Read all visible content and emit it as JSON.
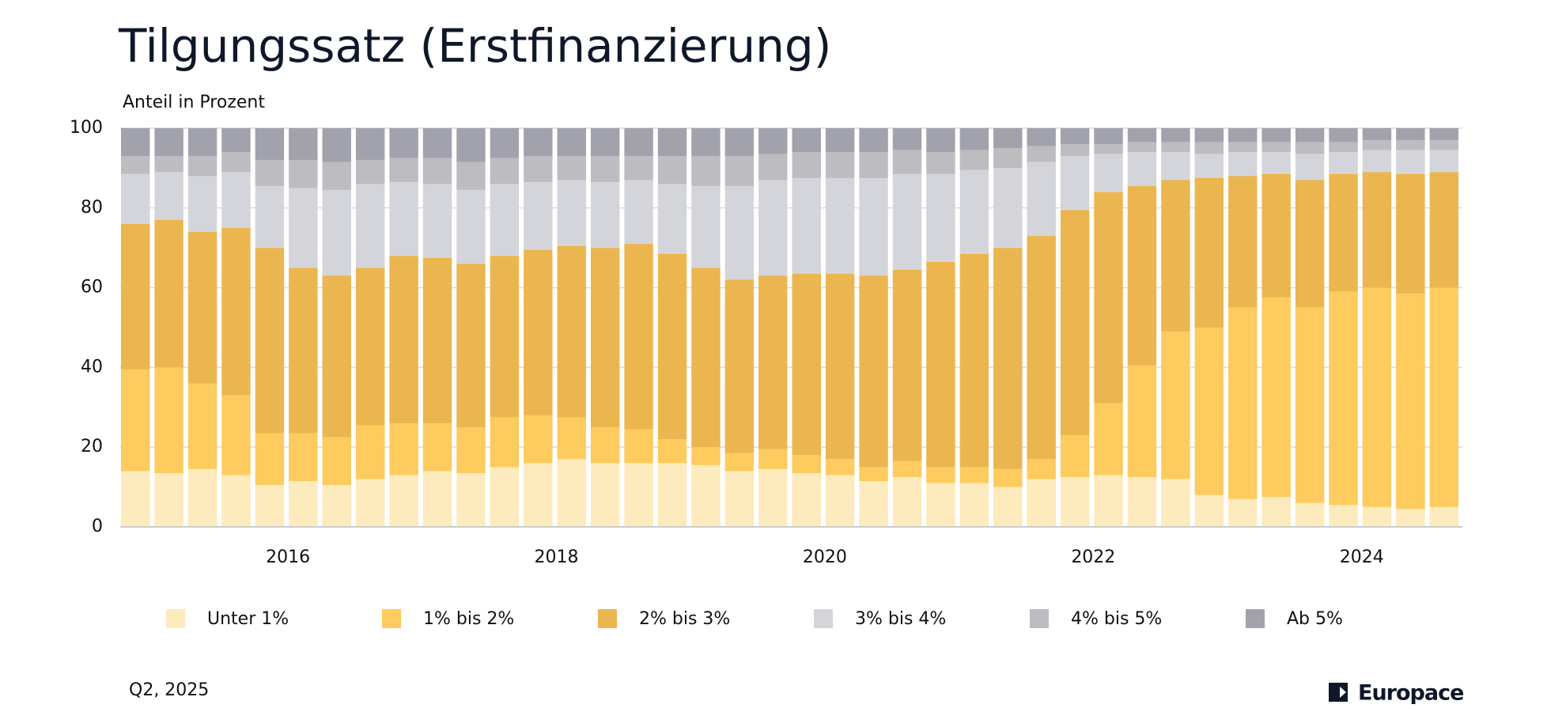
{
  "chart_data": {
    "type": "stacked_bar",
    "title": "Tilgungssatz (Erstfinanzierung)",
    "subtitle": "Anteil in Prozent",
    "footer": "Q2, 2025",
    "brand": "Europace",
    "categories": [
      null,
      null,
      null,
      null,
      null,
      "2016",
      null,
      null,
      null,
      null,
      null,
      null,
      null,
      "2018",
      null,
      null,
      null,
      null,
      null,
      null,
      null,
      "2020",
      null,
      null,
      null,
      null,
      null,
      null,
      null,
      "2022",
      null,
      null,
      null,
      null,
      null,
      null,
      null,
      "2024",
      null,
      null
    ],
    "ylim": [
      0,
      100
    ],
    "yticks": [
      0,
      20,
      40,
      60,
      80,
      100
    ],
    "grid": true,
    "series": [
      {
        "name": "Unter 1%",
        "color": "#fdeabd",
        "values": [
          14,
          13.5,
          14.5,
          13,
          10.5,
          11.5,
          10.5,
          12,
          13,
          14,
          13.5,
          15,
          16,
          17,
          16,
          16,
          16,
          15.5,
          14,
          14.5,
          13.5,
          13,
          11.5,
          12.5,
          11,
          11,
          10,
          12,
          12.5,
          13,
          12.5,
          12,
          8,
          7,
          7.5,
          6,
          5.5,
          5,
          4.5,
          5
        ]
      },
      {
        "name": "1% bis 2%",
        "color": "#fdcb5e",
        "values": [
          25.5,
          26.5,
          21.5,
          20,
          13,
          12,
          12,
          13.5,
          13,
          12,
          11.5,
          12.5,
          12,
          10.5,
          9,
          8.5,
          6,
          4.5,
          4.5,
          5,
          4.5,
          4,
          3.5,
          4,
          4,
          4,
          4.5,
          5,
          10.5,
          18,
          28,
          37,
          42,
          48,
          50,
          49,
          53.5,
          55,
          54,
          55
        ]
      },
      {
        "name": "2% bis 3%",
        "color": "#ebb64f",
        "values": [
          36.5,
          37,
          38,
          42,
          46.5,
          41.5,
          40.5,
          39.5,
          42,
          41.5,
          41,
          40.5,
          41.5,
          43,
          45,
          46.5,
          46.5,
          45,
          43.5,
          43.5,
          45.5,
          46.5,
          48,
          48,
          51.5,
          53.5,
          55.5,
          56,
          56.5,
          53,
          45,
          38,
          37.5,
          33,
          31,
          32,
          29.5,
          29,
          30,
          29
        ]
      },
      {
        "name": "3% bis 4%",
        "color": "#d4d5da",
        "values": [
          12.5,
          12,
          14,
          14,
          15.5,
          20,
          21.5,
          21,
          18.5,
          18.5,
          18.5,
          18,
          17,
          16.5,
          16.5,
          16,
          17.5,
          20.5,
          23.5,
          24,
          24,
          24,
          24.5,
          24,
          22,
          21,
          20,
          18.5,
          13.5,
          9.5,
          8.5,
          7,
          6,
          6,
          5.5,
          6.5,
          5.5,
          5.5,
          6,
          5.5
        ]
      },
      {
        "name": "4% bis 5%",
        "color": "#bcbcc1",
        "values": [
          4.5,
          4,
          5,
          5,
          6.5,
          7,
          7,
          6,
          6,
          6.5,
          7,
          6.5,
          6.5,
          6,
          6.5,
          6,
          7,
          7.5,
          7.5,
          6.5,
          6.5,
          6.5,
          6.5,
          6,
          5.5,
          5,
          5,
          4,
          3,
          2.5,
          2.5,
          2.5,
          3,
          2.5,
          2.5,
          3,
          2.5,
          2.5,
          2.5,
          2.5
        ]
      },
      {
        "name": "Ab 5%",
        "color": "#a2a2ac",
        "values": [
          7,
          7,
          7,
          6,
          8,
          8,
          8.5,
          8,
          7.5,
          7.5,
          8.5,
          7.5,
          7,
          7,
          7,
          7,
          7,
          7,
          7,
          6.5,
          6,
          6,
          6,
          5.5,
          6,
          5.5,
          5,
          4.5,
          4,
          4,
          3.5,
          3.5,
          3.5,
          3.5,
          3.5,
          3.5,
          3.5,
          3,
          3,
          3
        ]
      }
    ]
  }
}
